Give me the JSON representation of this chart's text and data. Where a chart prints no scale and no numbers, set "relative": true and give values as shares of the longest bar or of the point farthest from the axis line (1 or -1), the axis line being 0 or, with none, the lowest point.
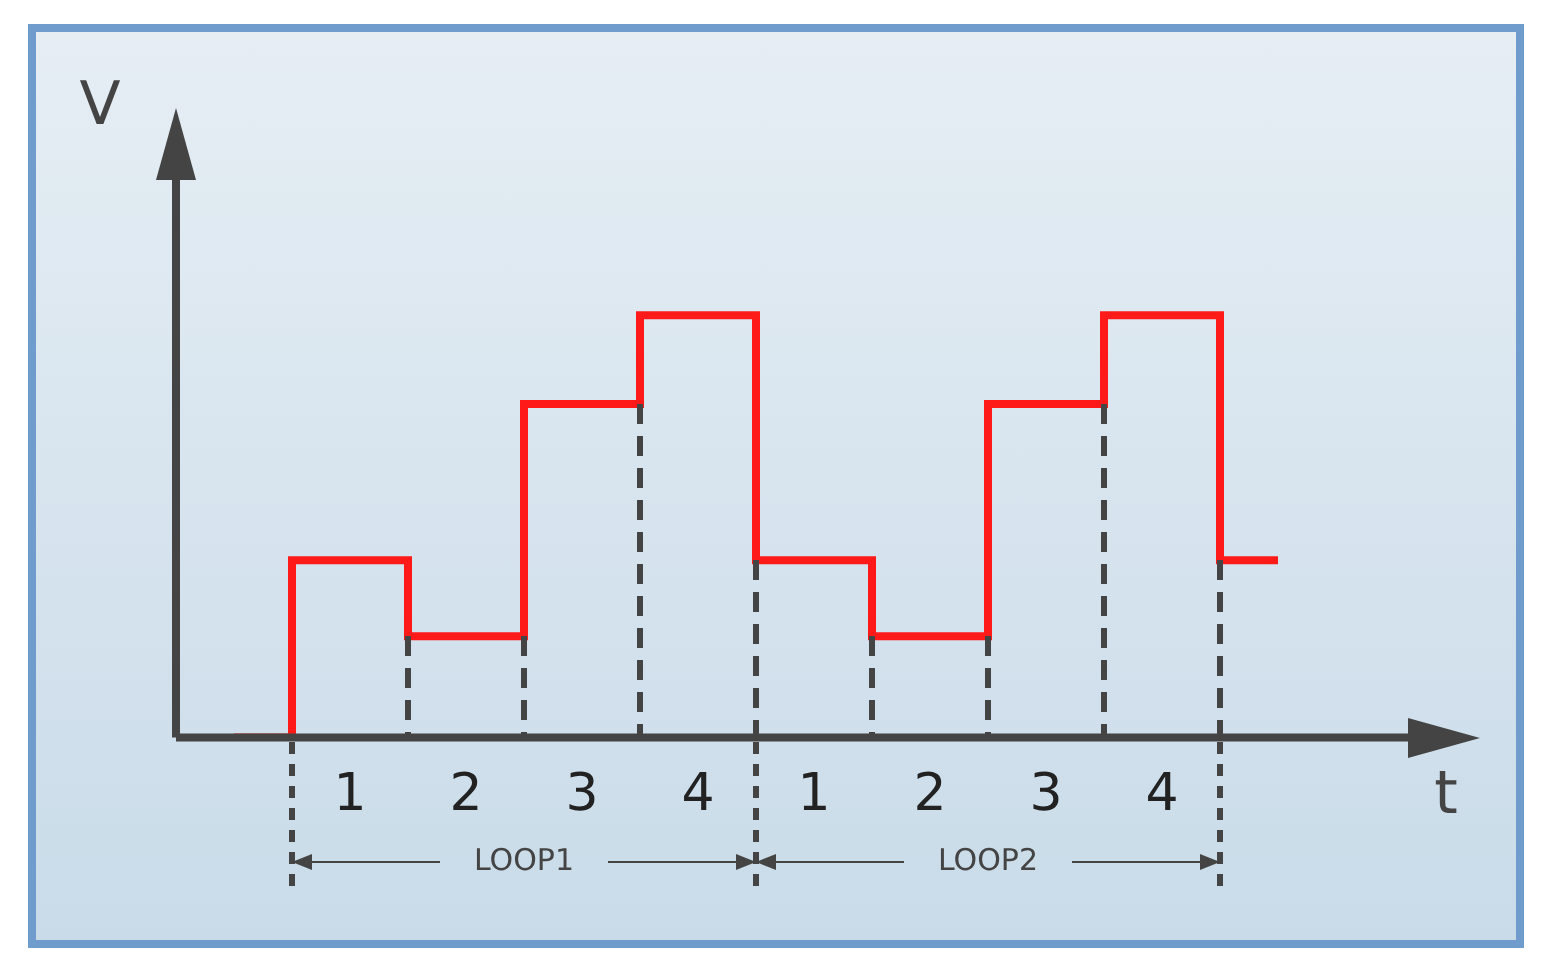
{
  "chart_data": {
    "type": "step",
    "relative": true,
    "ylabel": "V",
    "xlabel": "t",
    "categories": [
      null,
      "1",
      "2",
      "3",
      "4",
      "1",
      "2",
      "3",
      "4",
      null
    ],
    "values": [
      0,
      0.42,
      0.24,
      0.79,
      1,
      0.42,
      0.24,
      0.79,
      1,
      0.42
    ],
    "color": "#ff1a1a",
    "marker": "none",
    "grid": "x",
    "annotations": [
      "LOOP1",
      "LOOP2"
    ]
  }
}
